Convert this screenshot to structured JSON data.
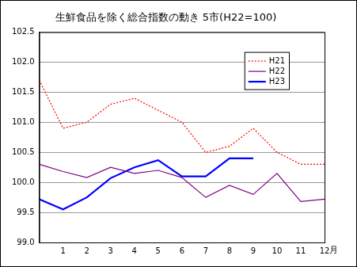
{
  "chart_data": {
    "type": "line",
    "title": "生鮮食品を除く総合指数の動き 5市(H22=100)",
    "x_label": "月",
    "categories": [
      null,
      "1",
      "2",
      "3",
      "4",
      "5",
      "6",
      "7",
      "8",
      "9",
      "10",
      "11",
      "12"
    ],
    "series": [
      {
        "name": "H21",
        "color": "#ff0000",
        "line_style": "dotted",
        "marker": "none",
        "values": [
          101.7,
          100.9,
          101.0,
          101.3,
          101.4,
          101.2,
          101.0,
          100.5,
          100.6,
          100.9,
          100.5,
          100.3,
          100.3
        ]
      },
      {
        "name": "H22",
        "color": "#800080",
        "line_style": "solid",
        "marker": "none",
        "values": [
          100.3,
          100.18,
          100.08,
          100.25,
          100.15,
          100.2,
          100.08,
          99.75,
          99.95,
          99.8,
          100.15,
          99.68,
          99.72
        ]
      },
      {
        "name": "H23",
        "color": "#0000ff",
        "line_style": "solid",
        "marker": "none",
        "values": [
          99.72,
          99.55,
          99.75,
          100.07,
          100.25,
          100.37,
          100.1,
          100.1,
          100.4,
          100.4,
          null,
          null,
          null
        ]
      }
    ],
    "ylim": [
      99,
      102.5
    ],
    "yticks": [
      {
        "value": 99,
        "label": "99.0"
      },
      99.5,
      {
        "value": 100,
        "label": "100.0"
      },
      100.5,
      {
        "value": 101,
        "label": "101.0"
      },
      101.5,
      {
        "value": 102,
        "label": "102.0"
      },
      102.5
    ],
    "grid": true,
    "legend": "upper right"
  }
}
